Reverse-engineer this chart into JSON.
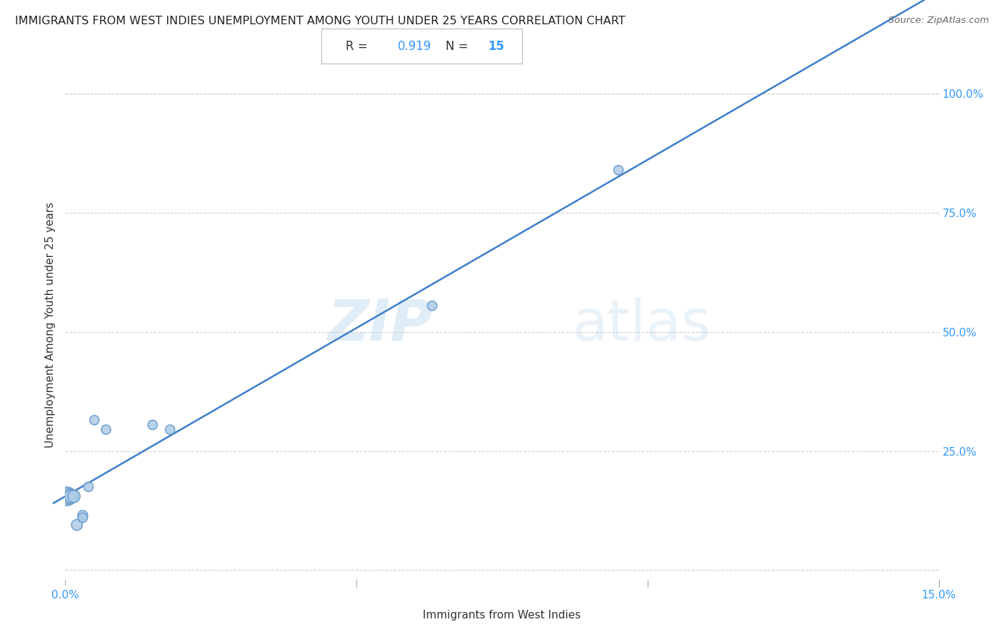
{
  "title": "IMMIGRANTS FROM WEST INDIES UNEMPLOYMENT AMONG YOUTH UNDER 25 YEARS CORRELATION CHART",
  "source": "Source: ZipAtlas.com",
  "xlabel": "Immigrants from West Indies",
  "ylabel": "Unemployment Among Youth under 25 years",
  "R": 0.919,
  "N": 15,
  "x_data": [
    0.0003,
    0.0005,
    0.001,
    0.001,
    0.0015,
    0.002,
    0.003,
    0.003,
    0.004,
    0.005,
    0.007,
    0.015,
    0.018,
    0.063,
    0.095
  ],
  "y_data": [
    0.155,
    0.155,
    0.155,
    0.155,
    0.155,
    0.095,
    0.115,
    0.11,
    0.175,
    0.315,
    0.295,
    0.305,
    0.295,
    0.555,
    0.84
  ],
  "marker_sizes": [
    350,
    250,
    200,
    180,
    150,
    120,
    100,
    90,
    90,
    90,
    90,
    90,
    90,
    90,
    90
  ],
  "dot_color": "#aecce8",
  "dot_edge_color": "#6699cc",
  "line_color": "#3d7dca",
  "x_min": 0.0,
  "x_max": 0.15,
  "y_min": -0.02,
  "y_max": 1.05,
  "x_ticks": [
    0.0,
    0.05,
    0.1,
    0.15
  ],
  "x_tick_labels": [
    "0.0%",
    "",
    "",
    "15.0%"
  ],
  "y_ticks_right": [
    0.0,
    0.25,
    0.5,
    0.75,
    1.0
  ],
  "y_tick_labels_right": [
    "",
    "25.0%",
    "50.0%",
    "75.0%",
    "100.0%"
  ],
  "grid_color": "#cccccc",
  "background_color": "#ffffff",
  "title_fontsize": 11.5,
  "source_fontsize": 9.5,
  "label_fontsize": 11,
  "tick_fontsize": 11
}
